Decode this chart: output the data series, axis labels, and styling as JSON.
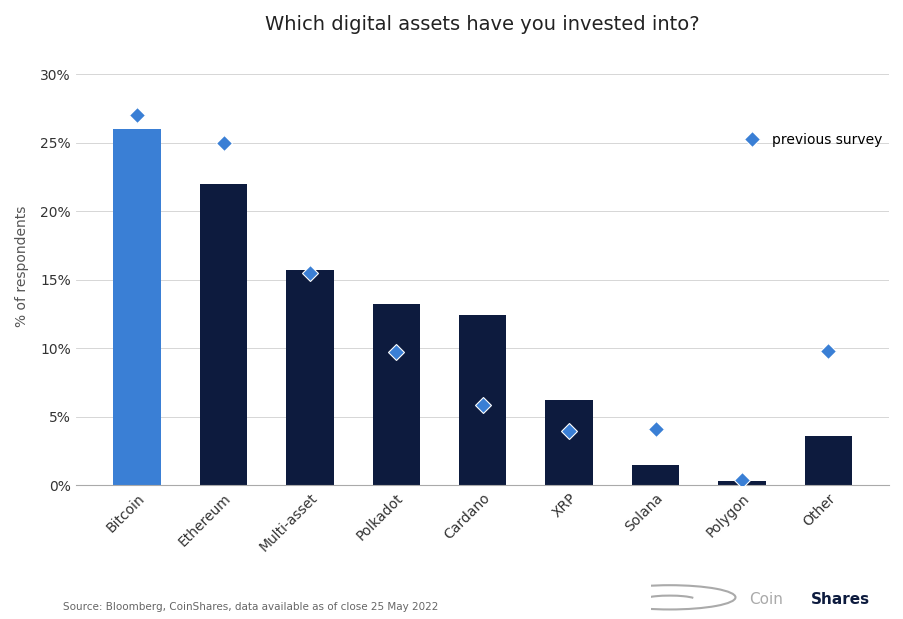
{
  "title": "Which digital assets have you invested into?",
  "categories": [
    "Bitcoin",
    "Ethereum",
    "Multi-asset",
    "Polkadot",
    "Cardano",
    "XRP",
    "Solana",
    "Polygon",
    "Other"
  ],
  "bar_values": [
    26.0,
    22.0,
    15.7,
    13.2,
    12.4,
    6.2,
    1.5,
    0.3,
    3.6
  ],
  "prev_values": [
    27.0,
    25.0,
    15.5,
    9.7,
    5.9,
    4.0,
    4.1,
    0.4,
    9.8
  ],
  "bar_colors": [
    "#3a7fd5",
    "#0d1b3e",
    "#0d1b3e",
    "#0d1b3e",
    "#0d1b3e",
    "#0d1b3e",
    "#0d1b3e",
    "#0d1b3e",
    "#0d1b3e"
  ],
  "diamond_color": "#3a7fd5",
  "ylabel": "% of respondents",
  "ylim": [
    0,
    32
  ],
  "yticks": [
    0,
    5,
    10,
    15,
    20,
    25,
    30
  ],
  "ytick_labels": [
    "0%",
    "5%",
    "10%",
    "15%",
    "20%",
    "25%",
    "30%"
  ],
  "legend_label": "previous survey",
  "source_text": "Source: Bloomberg, CoinShares, data available as of close 25 May 2022",
  "title_fontsize": 14,
  "ylabel_fontsize": 10,
  "tick_fontsize": 10,
  "background_color": "#ffffff",
  "grid_color": "#d0d0d0"
}
